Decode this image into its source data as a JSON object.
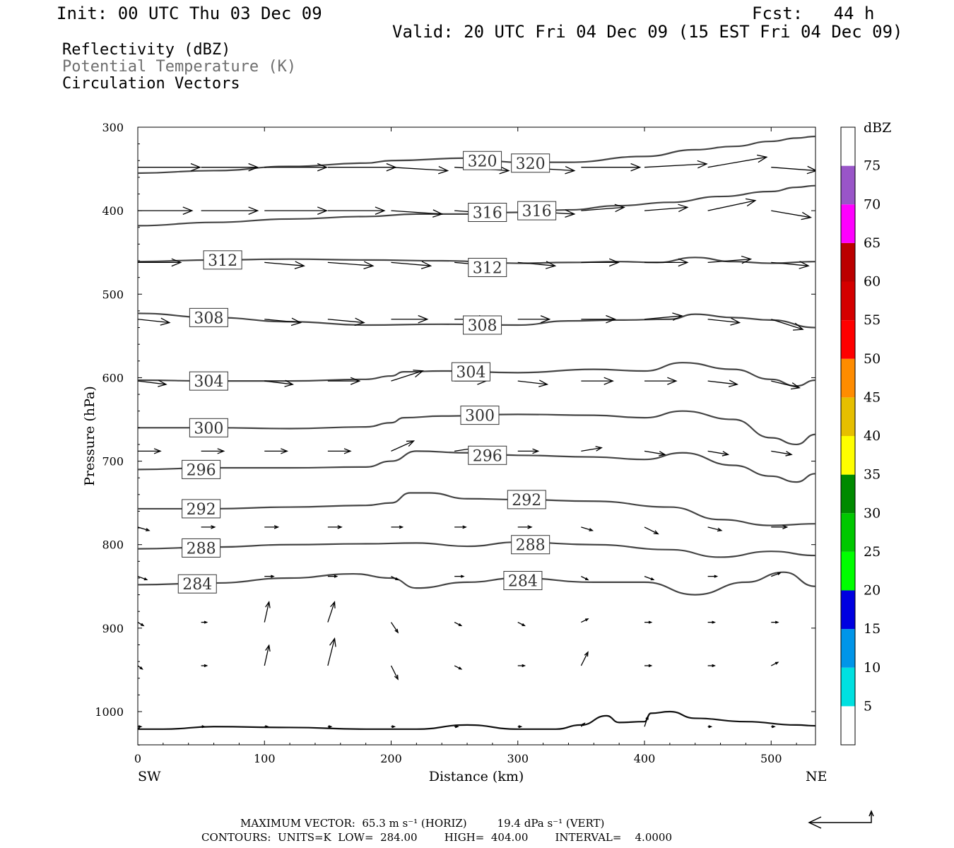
{
  "header": {
    "init": "Init: 00 UTC Thu 03 Dec 09",
    "fcst": "Fcst:   44 h",
    "valid": "Valid: 20 UTC Fri 04 Dec 09 (15 EST Fri 04 Dec 09)"
  },
  "fields": [
    {
      "label": "Reflectivity (dBZ)",
      "color": "#000000"
    },
    {
      "label": "Potential Temperature (K)",
      "color": "#6e6e6e"
    },
    {
      "label": "Circulation Vectors",
      "color": "#000000"
    }
  ],
  "footer": {
    "max_vector": "MAXIMUM VECTOR:  65.3 m s⁻¹ (HORIZ)         19.4 dPa s⁻¹ (VERT)",
    "contours": "CONTOURS:  UNITS=K  LOW=  284.00        HIGH=  404.00        INTERVAL=    4.0000"
  },
  "chart_data": {
    "type": "line",
    "xlabel": "Distance (km)",
    "ylabel": "Pressure (hPa)",
    "xlim": [
      0,
      535
    ],
    "ylim": [
      300,
      1040
    ],
    "y_inverted": true,
    "xticks": [
      0,
      100,
      200,
      300,
      400,
      500
    ],
    "yticks": [
      300,
      400,
      500,
      600,
      700,
      800,
      900,
      1000
    ],
    "x_end_labels": {
      "left": "SW",
      "right": "NE"
    },
    "colorbar": {
      "title": "dBZ",
      "ticks": [
        5,
        10,
        15,
        20,
        25,
        30,
        35,
        40,
        45,
        50,
        55,
        60,
        65,
        70,
        75
      ],
      "colors": [
        "#ffffff",
        "#00e0e0",
        "#0095e8",
        "#0000e0",
        "#00ff00",
        "#00c800",
        "#008a00",
        "#ffff00",
        "#e6bf00",
        "#ff8c00",
        "#ff0000",
        "#d40000",
        "#bb0000",
        "#ff00ff",
        "#9955c8",
        "#ffffff"
      ]
    },
    "isentropes": [
      {
        "theta": 320,
        "x": [
          0,
          60,
          120,
          180,
          200,
          260,
          300,
          340,
          400,
          440,
          470,
          500,
          520,
          535
        ],
        "p": [
          355,
          352,
          347,
          343,
          340,
          337,
          342,
          342,
          335,
          327,
          323,
          317,
          313,
          311
        ],
        "labels": [
          {
            "text": "320",
            "x": 272,
            "p": 340
          },
          {
            "text": "320",
            "x": 310,
            "p": 343
          }
        ]
      },
      {
        "theta": 316,
        "x": [
          0,
          60,
          120,
          180,
          220,
          260,
          300,
          340,
          380,
          420,
          460,
          500,
          520,
          535
        ],
        "p": [
          418,
          414,
          410,
          407,
          404,
          404,
          402,
          399,
          394,
          390,
          383,
          377,
          372,
          370
        ],
        "labels": [
          {
            "text": "316",
            "x": 276,
            "p": 402
          },
          {
            "text": "316",
            "x": 315,
            "p": 400
          }
        ]
      },
      {
        "theta": 312,
        "x": [
          0,
          60,
          120,
          180,
          240,
          300,
          340,
          380,
          410,
          440,
          470,
          500,
          535
        ],
        "p": [
          461,
          459,
          458,
          459,
          460,
          463,
          462,
          461,
          462,
          456,
          461,
          463,
          461
        ],
        "labels": [
          {
            "text": "312",
            "x": 67,
            "p": 459
          },
          {
            "text": "312",
            "x": 276,
            "p": 468
          }
        ]
      },
      {
        "theta": 308,
        "x": [
          0,
          60,
          120,
          180,
          240,
          300,
          340,
          380,
          420,
          440,
          470,
          500,
          535
        ],
        "p": [
          523,
          528,
          533,
          537,
          536,
          537,
          532,
          531,
          530,
          524,
          528,
          531,
          540
        ],
        "labels": [
          {
            "text": "308",
            "x": 56,
            "p": 528
          },
          {
            "text": "308",
            "x": 272,
            "p": 537
          }
        ]
      },
      {
        "theta": 304,
        "x": [
          0,
          60,
          120,
          180,
          200,
          210,
          240,
          300,
          360,
          400,
          430,
          470,
          500,
          520,
          535
        ],
        "p": [
          603,
          604,
          604,
          602,
          598,
          593,
          592,
          594,
          590,
          592,
          582,
          590,
          602,
          610,
          603
        ],
        "labels": [
          {
            "text": "304",
            "x": 56,
            "p": 604
          },
          {
            "text": "304",
            "x": 263,
            "p": 593
          }
        ]
      },
      {
        "theta": 300,
        "x": [
          0,
          60,
          120,
          180,
          200,
          210,
          240,
          300,
          360,
          400,
          430,
          470,
          500,
          520,
          535
        ],
        "p": [
          660,
          660,
          661,
          659,
          654,
          648,
          646,
          644,
          645,
          648,
          640,
          650,
          672,
          680,
          668
        ],
        "labels": [
          {
            "text": "300",
            "x": 56,
            "p": 660
          },
          {
            "text": "300",
            "x": 270,
            "p": 645
          }
        ]
      },
      {
        "theta": 296,
        "x": [
          0,
          60,
          120,
          180,
          200,
          220,
          260,
          300,
          360,
          400,
          430,
          470,
          500,
          520,
          535
        ],
        "p": [
          710,
          708,
          708,
          707,
          700,
          688,
          690,
          693,
          695,
          698,
          690,
          705,
          718,
          725,
          715
        ],
        "labels": [
          {
            "text": "296",
            "x": 50,
            "p": 710
          },
          {
            "text": "296",
            "x": 276,
            "p": 693
          }
        ]
      },
      {
        "theta": 292,
        "x": [
          0,
          60,
          120,
          180,
          200,
          215,
          230,
          260,
          300,
          360,
          420,
          460,
          500,
          535
        ],
        "p": [
          757,
          757,
          755,
          753,
          750,
          738,
          738,
          745,
          746,
          748,
          755,
          770,
          777,
          775
        ],
        "labels": [
          {
            "text": "292",
            "x": 50,
            "p": 757
          },
          {
            "text": "292",
            "x": 307,
            "p": 746
          }
        ]
      },
      {
        "theta": 288,
        "x": [
          0,
          60,
          120,
          180,
          220,
          260,
          300,
          360,
          420,
          460,
          500,
          535
        ],
        "p": [
          805,
          803,
          800,
          799,
          798,
          802,
          797,
          800,
          806,
          815,
          808,
          813
        ],
        "labels": [
          {
            "text": "288",
            "x": 50,
            "p": 804
          },
          {
            "text": "288",
            "x": 310,
            "p": 800
          }
        ]
      },
      {
        "theta": 284,
        "x": [
          0,
          60,
          120,
          170,
          200,
          220,
          260,
          300,
          360,
          400,
          440,
          480,
          510,
          535
        ],
        "p": [
          848,
          846,
          840,
          835,
          840,
          852,
          845,
          840,
          845,
          845,
          860,
          845,
          833,
          850
        ],
        "labels": [
          {
            "text": "284",
            "x": 47,
            "p": 847
          },
          {
            "text": "284",
            "x": 304,
            "p": 843
          }
        ]
      },
      {
        "theta": null,
        "x": [
          0,
          20,
          60,
          120,
          180,
          220,
          260,
          300,
          330,
          350,
          370,
          380,
          400,
          405,
          420,
          440,
          480,
          520,
          535
        ],
        "p": [
          1021,
          1021,
          1018,
          1019,
          1021,
          1021,
          1016,
          1021,
          1021,
          1016,
          1005,
          1013,
          1012,
          1002,
          1000,
          1008,
          1012,
          1016,
          1017
        ],
        "labels": []
      }
    ],
    "vectors": [
      {
        "p": 348,
        "x": [
          0,
          50,
          100,
          150,
          200,
          250,
          300,
          350,
          400,
          450,
          500
        ],
        "u": [
          55,
          50,
          55,
          60,
          50,
          48,
          50,
          52,
          55,
          52,
          40
        ],
        "w": [
          0,
          0,
          0,
          0,
          1,
          1,
          1,
          0,
          -1,
          -3,
          1
        ]
      },
      {
        "p": 400,
        "x": [
          0,
          50,
          100,
          150,
          200,
          250,
          300,
          350,
          400,
          450,
          500
        ],
        "u": [
          48,
          50,
          55,
          50,
          45,
          45,
          50,
          38,
          38,
          42,
          35
        ],
        "w": [
          0,
          0,
          0,
          0,
          1,
          1,
          1,
          -1,
          -1,
          -3,
          2
        ]
      },
      {
        "p": 462,
        "x": [
          0,
          50,
          100,
          150,
          200,
          250,
          300,
          350,
          400,
          450,
          500
        ],
        "u": [
          38,
          0,
          35,
          40,
          35,
          35,
          33,
          33,
          38,
          38,
          33
        ],
        "w": [
          0,
          0,
          1,
          1,
          1,
          1,
          1,
          0,
          0,
          -1,
          1
        ]
      },
      {
        "p": 530,
        "x": [
          0,
          50,
          100,
          150,
          200,
          250,
          300,
          350,
          400,
          450,
          500
        ],
        "u": [
          28,
          0,
          32,
          32,
          32,
          30,
          28,
          30,
          33,
          28,
          28
        ],
        "w": [
          1,
          0,
          1,
          1,
          0,
          0,
          0,
          0,
          -1,
          1,
          3
        ]
      },
      {
        "p": 604,
        "x": [
          0,
          50,
          100,
          150,
          200,
          250,
          300,
          350,
          400,
          450,
          500
        ],
        "u": [
          25,
          0,
          25,
          28,
          28,
          28,
          26,
          28,
          28,
          26,
          25
        ],
        "w": [
          1,
          0,
          1,
          0,
          -3,
          0,
          1,
          0,
          0,
          1,
          2
        ]
      },
      {
        "p": 688,
        "x": [
          0,
          50,
          100,
          150,
          200,
          250,
          300,
          350,
          400,
          450,
          500
        ],
        "u": [
          20,
          20,
          20,
          20,
          20,
          20,
          18,
          18,
          18,
          18,
          18
        ],
        "w": [
          0,
          0,
          0,
          0,
          -3,
          -1,
          0,
          -1,
          1,
          1,
          1
        ]
      },
      {
        "p": 779,
        "x": [
          0,
          50,
          100,
          150,
          200,
          250,
          300,
          350,
          400,
          450,
          500
        ],
        "u": [
          10,
          12,
          12,
          12,
          10,
          10,
          12,
          10,
          12,
          12,
          14
        ],
        "w": [
          1,
          0,
          0,
          0,
          0,
          0,
          0,
          1,
          2,
          1,
          0
        ]
      },
      {
        "p": 838,
        "x": [
          0,
          50,
          100,
          150,
          200,
          250,
          300,
          350,
          400,
          450,
          500
        ],
        "u": [
          8,
          8,
          8,
          8,
          6,
          8,
          8,
          6,
          8,
          8,
          8
        ],
        "w": [
          1,
          0,
          0,
          0,
          1,
          0,
          1,
          1,
          1,
          0,
          -1
        ]
      },
      {
        "p": 893,
        "x": [
          0,
          50,
          100,
          150,
          200,
          250,
          300,
          350,
          400,
          450,
          500
        ],
        "u": [
          5,
          5,
          4,
          6,
          6,
          6,
          6,
          6,
          6,
          6,
          6
        ],
        "w": [
          1,
          0,
          -6,
          -6,
          3,
          1,
          1,
          -1,
          0,
          0,
          0
        ]
      },
      {
        "p": 945,
        "x": [
          0,
          50,
          100,
          150,
          200,
          250,
          300,
          350,
          400,
          450,
          500
        ],
        "u": [
          4,
          5,
          4,
          6,
          6,
          6,
          6,
          6,
          6,
          6,
          6
        ],
        "w": [
          1,
          0,
          -6,
          -8,
          4,
          1,
          0,
          -4,
          0,
          0,
          -1
        ]
      },
      {
        "p": 1018,
        "x": [
          0,
          50,
          100,
          150,
          200,
          250,
          300,
          350,
          400,
          450,
          500
        ],
        "u": [
          3,
          3,
          3,
          3,
          3,
          3,
          3,
          3,
          3,
          3,
          3
        ],
        "w": [
          0,
          0,
          0,
          0,
          0,
          0,
          0,
          -1,
          -3,
          0,
          0
        ]
      }
    ]
  }
}
